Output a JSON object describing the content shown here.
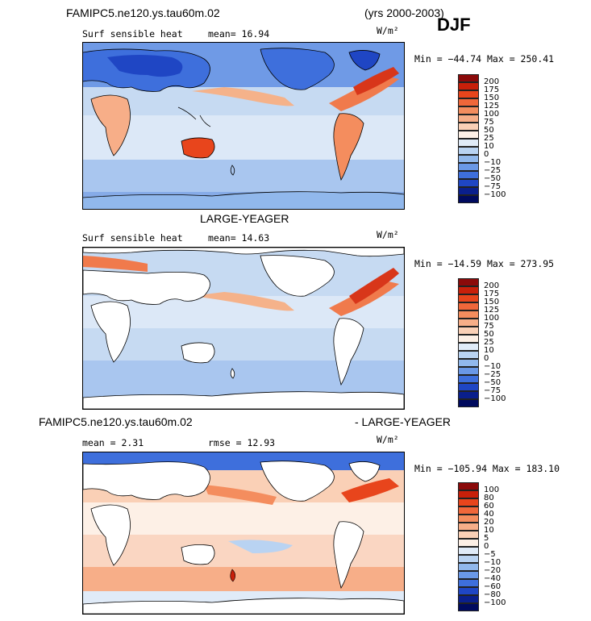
{
  "panels": [
    {
      "header_left": "FAMIPC5.ne120.ys.tau60m.02",
      "header_right": "(yrs 2000-2003)",
      "season": "DJF",
      "label_left": "Surf sensible heat",
      "label_mid": "mean=  16.94",
      "units": "W/m²",
      "minmax": "Min = −44.74 Max = 250.41",
      "colorbar_ticks": [
        "200",
        "175",
        "150",
        "125",
        "100",
        "75",
        "50",
        "25",
        "10",
        "0",
        "−10",
        "−25",
        "−50",
        "−75",
        "−100"
      ]
    },
    {
      "header_center": "LARGE-YEAGER",
      "label_left": "Surf sensible heat",
      "label_mid": "mean=  14.63",
      "units": "W/m²",
      "minmax": "Min = −14.59 Max = 273.95",
      "colorbar_ticks": [
        "200",
        "175",
        "150",
        "125",
        "100",
        "75",
        "50",
        "25",
        "10",
        "0",
        "−10",
        "−25",
        "−50",
        "−75",
        "−100"
      ]
    },
    {
      "header_left": "FAMIPC5.ne120.ys.tau60m.02",
      "header_right": "- LARGE-YEAGER",
      "label_left": "mean =   2.31",
      "label_mid": "rmse =  12.93",
      "units": "W/m²",
      "minmax": "Min = −105.94 Max = 183.10",
      "colorbar_ticks": [
        "100",
        "80",
        "60",
        "40",
        "20",
        "10",
        "5",
        "0",
        "−5",
        "−10",
        "−20",
        "−40",
        "−60",
        "−80",
        "−100"
      ]
    }
  ],
  "colors": {
    "scale": [
      "#8b0a0a",
      "#c8200a",
      "#e8451c",
      "#f0673a",
      "#f48d5e",
      "#f7ae88",
      "#fad0b6",
      "#fdf0e6",
      "#e0ebf8",
      "#b9d3f2",
      "#91b8ec",
      "#6a98e6",
      "#3e6fdc",
      "#1f46c4",
      "#0a1f8c",
      "#000a5e"
    ],
    "land_fill": "#ffffff",
    "coast": "#000000"
  },
  "chart_data": [
    {
      "type": "heatmap",
      "title": "FAMIPC5.ne120.ys.tau60m.02 (yrs 2000-2003) DJF — Surf sensible heat",
      "units": "W/m²",
      "mean": 16.94,
      "min": -44.74,
      "max": 250.41,
      "levels": [
        -100,
        -75,
        -50,
        -25,
        -10,
        0,
        10,
        25,
        50,
        75,
        100,
        125,
        150,
        175,
        200
      ]
    },
    {
      "type": "heatmap",
      "title": "LARGE-YEAGER — Surf sensible heat",
      "units": "W/m²",
      "mean": 14.63,
      "min": -14.59,
      "max": 273.95,
      "levels": [
        -100,
        -75,
        -50,
        -25,
        -10,
        0,
        10,
        25,
        50,
        75,
        100,
        125,
        150,
        175,
        200
      ]
    },
    {
      "type": "heatmap",
      "title": "FAMIPC5.ne120.ys.tau60m.02 - LARGE-YEAGER",
      "units": "W/m²",
      "mean": 2.31,
      "rmse": 12.93,
      "min": -105.94,
      "max": 183.1,
      "levels": [
        -100,
        -80,
        -60,
        -40,
        -20,
        -10,
        -5,
        0,
        5,
        10,
        20,
        40,
        60,
        80,
        100
      ]
    }
  ]
}
